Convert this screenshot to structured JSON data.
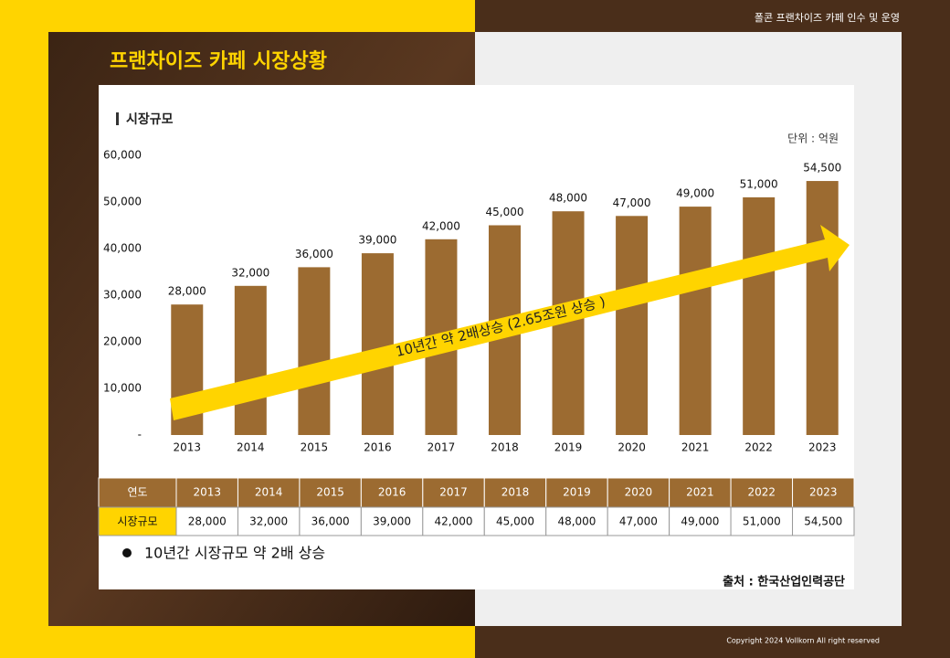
{
  "header": {
    "top_right": "폴콘 프랜차이즈 카페 인수 및 운영",
    "title": "프랜차이즈 카페 시장상황"
  },
  "chart_data": {
    "type": "bar",
    "title": "시장규모",
    "unit": "단위 : 억원",
    "categories": [
      "2013",
      "2014",
      "2015",
      "2016",
      "2017",
      "2018",
      "2019",
      "2020",
      "2021",
      "2022",
      "2023"
    ],
    "values": [
      28000,
      32000,
      36000,
      39000,
      42000,
      45000,
      48000,
      47000,
      49000,
      51000,
      54500
    ],
    "value_labels": [
      "28,000",
      "32,000",
      "36,000",
      "39,000",
      "42,000",
      "45,000",
      "48,000",
      "47,000",
      "49,000",
      "51,000",
      "54,500"
    ],
    "color": "#9c6b31",
    "ylim": [
      0,
      60000
    ],
    "yticks": [
      {
        "value": 0,
        "label": "-"
      },
      {
        "value": 10000,
        "label": "10,000"
      },
      {
        "value": 20000,
        "label": "20,000"
      },
      {
        "value": 30000,
        "label": "30,000"
      },
      {
        "value": 40000,
        "label": "40,000"
      },
      {
        "value": 50000,
        "label": "50,000"
      },
      {
        "value": 60000,
        "label": "60,000"
      }
    ],
    "grid": false,
    "annotation": "10년간 약 2배상승 (2.65조원 상승 )"
  },
  "table": {
    "header": [
      "연도",
      "2013",
      "2014",
      "2015",
      "2016",
      "2017",
      "2018",
      "2019",
      "2020",
      "2021",
      "2022",
      "2023"
    ],
    "rows": [
      [
        "시장규모",
        "28,000",
        "32,000",
        "36,000",
        "39,000",
        "42,000",
        "45,000",
        "48,000",
        "47,000",
        "49,000",
        "51,000",
        "54,500"
      ]
    ]
  },
  "bullet": "10년간 시장규모 약 2배 상승",
  "source": "출처 : 한국산업인력공단",
  "footer": "Copyright 2024  Vollkorn  All right reserved"
}
